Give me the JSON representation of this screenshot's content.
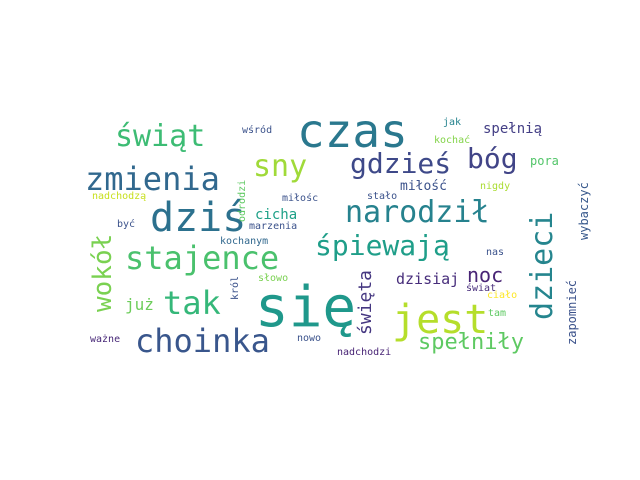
{
  "cloud": {
    "words": [
      {
        "text": "się",
        "color": "#1f988b",
        "orientation": "horizontal"
      },
      {
        "text": "czas",
        "color": "#2a788e",
        "orientation": "horizontal"
      },
      {
        "text": "dziś",
        "color": "#2c718e",
        "orientation": "horizontal"
      },
      {
        "text": "jest",
        "color": "#b5de2b",
        "orientation": "horizontal"
      },
      {
        "text": "choinka",
        "color": "#39568c",
        "orientation": "horizontal"
      },
      {
        "text": "zmienia",
        "color": "#31688e",
        "orientation": "horizontal"
      },
      {
        "text": "tak",
        "color": "#35b779",
        "orientation": "horizontal"
      },
      {
        "text": "stajence",
        "color": "#4ac16d",
        "orientation": "horizontal"
      },
      {
        "text": "narodził",
        "color": "#26828e",
        "orientation": "horizontal"
      },
      {
        "text": "gdzieś",
        "color": "#3e4989",
        "orientation": "horizontal"
      },
      {
        "text": "sny",
        "color": "#a0da39",
        "orientation": "horizontal"
      },
      {
        "text": "świąt",
        "color": "#3dbc74",
        "orientation": "horizontal"
      },
      {
        "text": "śpiewają",
        "color": "#1f9e89",
        "orientation": "horizontal"
      },
      {
        "text": "bóg",
        "color": "#414487",
        "orientation": "horizontal"
      },
      {
        "text": "dzieci",
        "color": "#25858e",
        "orientation": "vertical"
      },
      {
        "text": "wokół",
        "color": "#7ad151",
        "orientation": "vertical"
      },
      {
        "text": "spełniły",
        "color": "#5ec962",
        "orientation": "horizontal"
      },
      {
        "text": "noc",
        "color": "#482475",
        "orientation": "horizontal"
      },
      {
        "text": "święta",
        "color": "#453781",
        "orientation": "vertical"
      },
      {
        "text": "już",
        "color": "#6ccd5a",
        "orientation": "horizontal"
      },
      {
        "text": "dzisiaj",
        "color": "#472d7b",
        "orientation": "horizontal"
      },
      {
        "text": "cicha",
        "color": "#1fa188",
        "orientation": "horizontal"
      },
      {
        "text": "spełnią",
        "color": "#433e85",
        "orientation": "horizontal"
      },
      {
        "text": "pora",
        "color": "#52c569",
        "orientation": "horizontal"
      },
      {
        "text": "miłość",
        "color": "#3b528b",
        "orientation": "horizontal"
      },
      {
        "text": "zapomnieć",
        "color": "#3b528b",
        "orientation": "vertical"
      },
      {
        "text": "wybaczyć",
        "color": "#38598c",
        "orientation": "vertical"
      },
      {
        "text": "wśród",
        "color": "#3b528b",
        "orientation": "horizontal"
      },
      {
        "text": "jak",
        "color": "#25838e",
        "orientation": "horizontal"
      },
      {
        "text": "kochać",
        "color": "#84d44b",
        "orientation": "horizontal"
      },
      {
        "text": "nadchodzą",
        "color": "#c8e020",
        "orientation": "horizontal"
      },
      {
        "text": "nigdy",
        "color": "#aadc32",
        "orientation": "horizontal"
      },
      {
        "text": "miłośc",
        "color": "#3b528b",
        "orientation": "horizontal"
      },
      {
        "text": "stało",
        "color": "#3b528b",
        "orientation": "horizontal"
      },
      {
        "text": "odrodzi",
        "color": "#5ec962",
        "orientation": "vertical"
      },
      {
        "text": "marzenia",
        "color": "#3b528b",
        "orientation": "horizontal"
      },
      {
        "text": "być",
        "color": "#3b528b",
        "orientation": "horizontal"
      },
      {
        "text": "kochanym",
        "color": "#31688e",
        "orientation": "horizontal"
      },
      {
        "text": "nas",
        "color": "#3b528b",
        "orientation": "horizontal"
      },
      {
        "text": "słowo",
        "color": "#7ad151",
        "orientation": "horizontal"
      },
      {
        "text": "król",
        "color": "#3b528b",
        "orientation": "vertical"
      },
      {
        "text": "świat",
        "color": "#472d7b",
        "orientation": "horizontal"
      },
      {
        "text": "ciało",
        "color": "#fde725",
        "orientation": "horizontal"
      },
      {
        "text": "tam",
        "color": "#5ec962",
        "orientation": "horizontal"
      },
      {
        "text": "ważne",
        "color": "#482878",
        "orientation": "horizontal"
      },
      {
        "text": "nowo",
        "color": "#3b528b",
        "orientation": "horizontal"
      },
      {
        "text": "nadchodzi",
        "color": "#482475",
        "orientation": "horizontal"
      }
    ]
  }
}
